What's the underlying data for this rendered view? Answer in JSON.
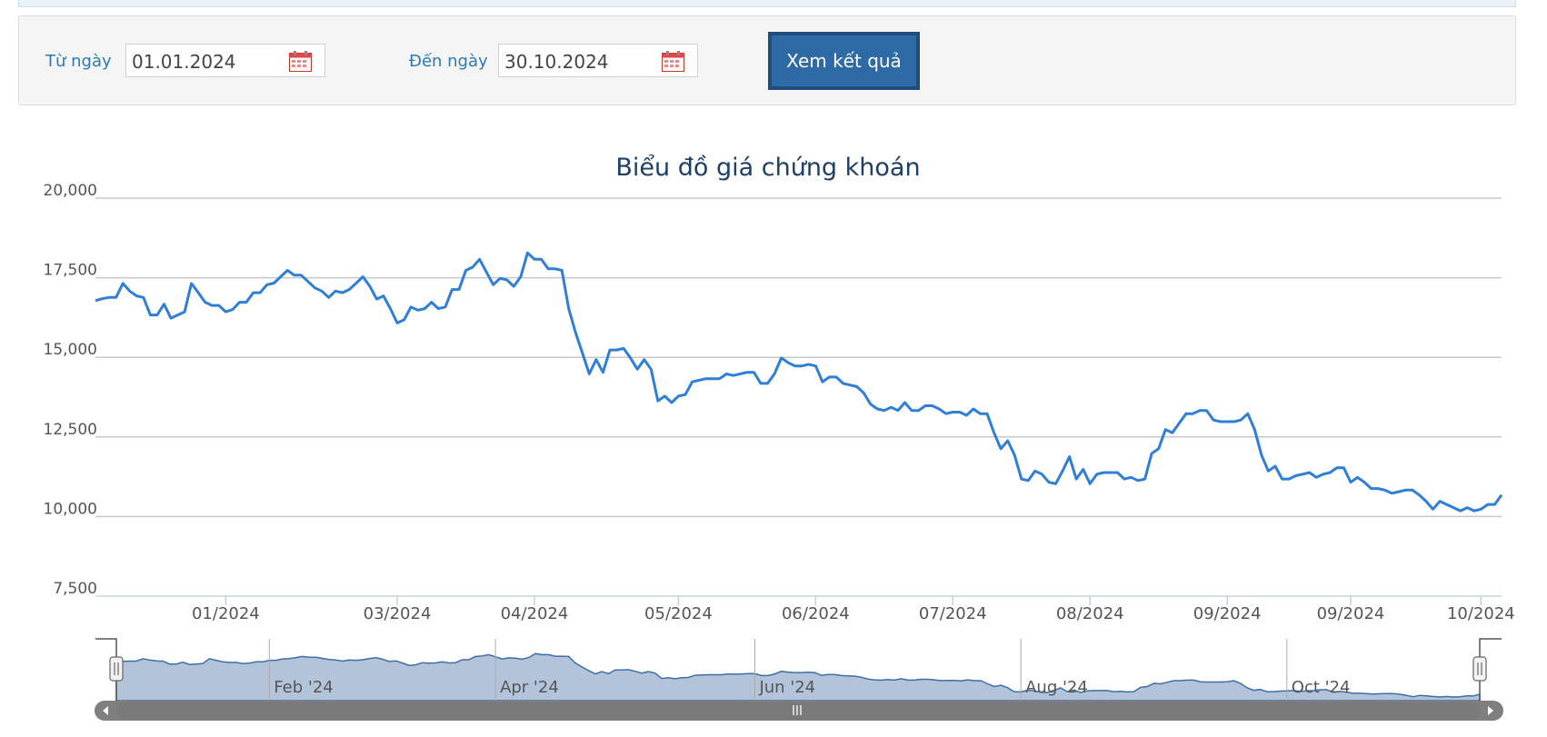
{
  "filter": {
    "from_label": "Từ ngày",
    "from_value": "01.01.2024",
    "to_label": "Đến ngày",
    "to_value": "30.10.2024",
    "submit_label": "Xem kết quả"
  },
  "colors": {
    "line": "#2f7ed8",
    "navigator_fill": "#b3c4da",
    "button": "#2e6aa6",
    "label": "#2b7bb9"
  },
  "chart_data": {
    "type": "line",
    "title": "Biểu đồ giá chứng khoán",
    "xlabel": "",
    "ylabel": "",
    "ylim": [
      7500,
      20000
    ],
    "yticks": [
      20000,
      17500,
      15000,
      12500,
      10000,
      7500
    ],
    "ytick_labels": [
      "20,000",
      "17,500",
      "15,000",
      "12,500",
      "10,000",
      "7,500"
    ],
    "xticks": [
      {
        "label": "01/2024",
        "index": 19
      },
      {
        "label": "03/2024",
        "index": 44
      },
      {
        "label": "04/2024",
        "index": 64
      },
      {
        "label": "05/2024",
        "index": 85
      },
      {
        "label": "06/2024",
        "index": 105
      },
      {
        "label": "07/2024",
        "index": 125
      },
      {
        "label": "08/2024",
        "index": 145
      },
      {
        "label": "09/2024",
        "index": 165
      },
      {
        "label": "09/2024",
        "index": 183
      },
      {
        "label": "10/2024",
        "index": 202
      }
    ],
    "grid": true,
    "legend": "none",
    "navigator": {
      "labels": [
        {
          "label": "Feb '24",
          "index": 23
        },
        {
          "label": "Apr '24",
          "index": 57
        },
        {
          "label": "Jun '24",
          "index": 96
        },
        {
          "label": "Aug '24",
          "index": 136
        },
        {
          "label": "Oct '24",
          "index": 176
        }
      ]
    },
    "series": [
      {
        "values": [
          16780,
          16840,
          16880,
          16880,
          17320,
          17080,
          16930,
          16880,
          16330,
          16330,
          16670,
          16230,
          16330,
          16430,
          17320,
          17030,
          16730,
          16630,
          16630,
          16430,
          16500,
          16730,
          16730,
          17030,
          17030,
          17280,
          17330,
          17530,
          17730,
          17580,
          17580,
          17380,
          17180,
          17080,
          16880,
          17080,
          17030,
          17130,
          17330,
          17530,
          17230,
          16830,
          16930,
          16530,
          16080,
          16180,
          16580,
          16480,
          16530,
          16730,
          16530,
          16580,
          17130,
          17130,
          17730,
          17830,
          18080,
          17680,
          17280,
          17480,
          17430,
          17230,
          17530,
          18280,
          18080,
          18080,
          17780,
          17780,
          17730,
          16530,
          15780,
          15130,
          14480,
          14930,
          14530,
          15230,
          15230,
          15280,
          14980,
          14630,
          14930,
          14630,
          13630,
          13780,
          13580,
          13780,
          13830,
          14230,
          14280,
          14330,
          14330,
          14330,
          14480,
          14430,
          14480,
          14530,
          14530,
          14180,
          14180,
          14480,
          14980,
          14830,
          14730,
          14730,
          14780,
          14730,
          14230,
          14380,
          14380,
          14180,
          14130,
          14080,
          13880,
          13530,
          13380,
          13330,
          13430,
          13330,
          13580,
          13330,
          13330,
          13480,
          13480,
          13380,
          13230,
          13280,
          13280,
          13180,
          13380,
          13230,
          13230,
          12630,
          12130,
          12380,
          11930,
          11180,
          11130,
          11430,
          11330,
          11080,
          11030,
          11430,
          11880,
          11180,
          11480,
          11030,
          11330,
          11380,
          11380,
          11380,
          11180,
          11230,
          11130,
          11180,
          11980,
          12130,
          12730,
          12630,
          12930,
          13230,
          13230,
          13330,
          13330,
          13030,
          12980,
          12980,
          12980,
          13030,
          13230,
          12730,
          11930,
          11430,
          11580,
          11180,
          11180,
          11280,
          11330,
          11380,
          11230,
          11330,
          11380,
          11530,
          11530,
          11080,
          11230,
          11080,
          10880,
          10880,
          10830,
          10730,
          10780,
          10830,
          10830,
          10680,
          10480,
          10230,
          10480,
          10380,
          10280,
          10180,
          10280,
          10180,
          10230,
          10380,
          10380,
          10680
        ]
      }
    ]
  }
}
